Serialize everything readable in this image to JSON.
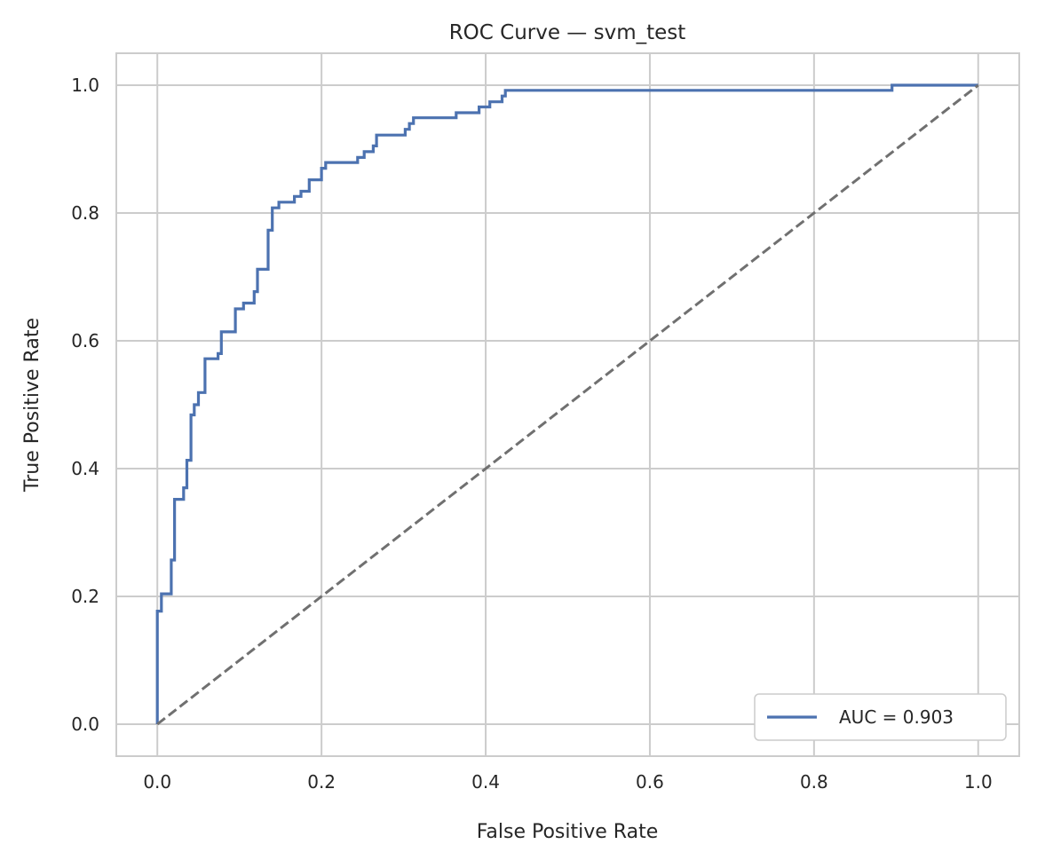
{
  "chart_data": {
    "type": "line",
    "title": "ROC Curve — svm_test",
    "xlabel": "False Positive Rate",
    "ylabel": "True Positive Rate",
    "xlim": [
      -0.05,
      1.05
    ],
    "ylim": [
      -0.05,
      1.05
    ],
    "x_ticks": [
      0.0,
      0.2,
      0.4,
      0.6,
      0.8,
      1.0
    ],
    "y_ticks": [
      0.0,
      0.2,
      0.4,
      0.6,
      0.8,
      1.0
    ],
    "x_tick_labels": [
      "0.0",
      "0.2",
      "0.4",
      "0.6",
      "0.8",
      "1.0"
    ],
    "y_tick_labels": [
      "0.0",
      "0.2",
      "0.4",
      "0.6",
      "0.8",
      "1.0"
    ],
    "grid": true,
    "legend_position": "lower-right",
    "colors": {
      "roc": "#4c72b0",
      "diagonal": "#707070",
      "grid": "#cccccc",
      "spine": "#cccccc"
    },
    "series": [
      {
        "name": "AUC = 0.903",
        "style": "solid",
        "points": [
          [
            0.0,
            0.0
          ],
          [
            0.0,
            0.177
          ],
          [
            0.005,
            0.177
          ],
          [
            0.005,
            0.204
          ],
          [
            0.017,
            0.204
          ],
          [
            0.017,
            0.257
          ],
          [
            0.021,
            0.257
          ],
          [
            0.021,
            0.352
          ],
          [
            0.032,
            0.352
          ],
          [
            0.032,
            0.37
          ],
          [
            0.036,
            0.37
          ],
          [
            0.036,
            0.413
          ],
          [
            0.041,
            0.413
          ],
          [
            0.041,
            0.484
          ],
          [
            0.045,
            0.484
          ],
          [
            0.045,
            0.5
          ],
          [
            0.05,
            0.5
          ],
          [
            0.05,
            0.519
          ],
          [
            0.058,
            0.519
          ],
          [
            0.058,
            0.572
          ],
          [
            0.074,
            0.572
          ],
          [
            0.074,
            0.58
          ],
          [
            0.078,
            0.58
          ],
          [
            0.078,
            0.614
          ],
          [
            0.095,
            0.614
          ],
          [
            0.095,
            0.65
          ],
          [
            0.105,
            0.65
          ],
          [
            0.105,
            0.659
          ],
          [
            0.118,
            0.659
          ],
          [
            0.118,
            0.677
          ],
          [
            0.122,
            0.677
          ],
          [
            0.122,
            0.712
          ],
          [
            0.135,
            0.712
          ],
          [
            0.135,
            0.773
          ],
          [
            0.14,
            0.773
          ],
          [
            0.14,
            0.808
          ],
          [
            0.148,
            0.808
          ],
          [
            0.148,
            0.817
          ],
          [
            0.167,
            0.817
          ],
          [
            0.167,
            0.826
          ],
          [
            0.175,
            0.826
          ],
          [
            0.175,
            0.834
          ],
          [
            0.185,
            0.834
          ],
          [
            0.185,
            0.852
          ],
          [
            0.2,
            0.852
          ],
          [
            0.2,
            0.87
          ],
          [
            0.205,
            0.87
          ],
          [
            0.205,
            0.879
          ],
          [
            0.244,
            0.879
          ],
          [
            0.244,
            0.887
          ],
          [
            0.252,
            0.887
          ],
          [
            0.252,
            0.896
          ],
          [
            0.263,
            0.896
          ],
          [
            0.263,
            0.905
          ],
          [
            0.267,
            0.905
          ],
          [
            0.267,
            0.922
          ],
          [
            0.302,
            0.922
          ],
          [
            0.302,
            0.931
          ],
          [
            0.307,
            0.931
          ],
          [
            0.307,
            0.94
          ],
          [
            0.312,
            0.94
          ],
          [
            0.312,
            0.949
          ],
          [
            0.364,
            0.949
          ],
          [
            0.364,
            0.957
          ],
          [
            0.392,
            0.957
          ],
          [
            0.392,
            0.966
          ],
          [
            0.405,
            0.966
          ],
          [
            0.405,
            0.974
          ],
          [
            0.42,
            0.974
          ],
          [
            0.42,
            0.983
          ],
          [
            0.424,
            0.983
          ],
          [
            0.424,
            0.992
          ],
          [
            0.895,
            0.992
          ],
          [
            0.895,
            1.0
          ],
          [
            1.0,
            1.0
          ]
        ]
      },
      {
        "name": "",
        "style": "dashed",
        "points": [
          [
            0.0,
            0.0
          ],
          [
            1.0,
            1.0
          ]
        ]
      }
    ]
  }
}
